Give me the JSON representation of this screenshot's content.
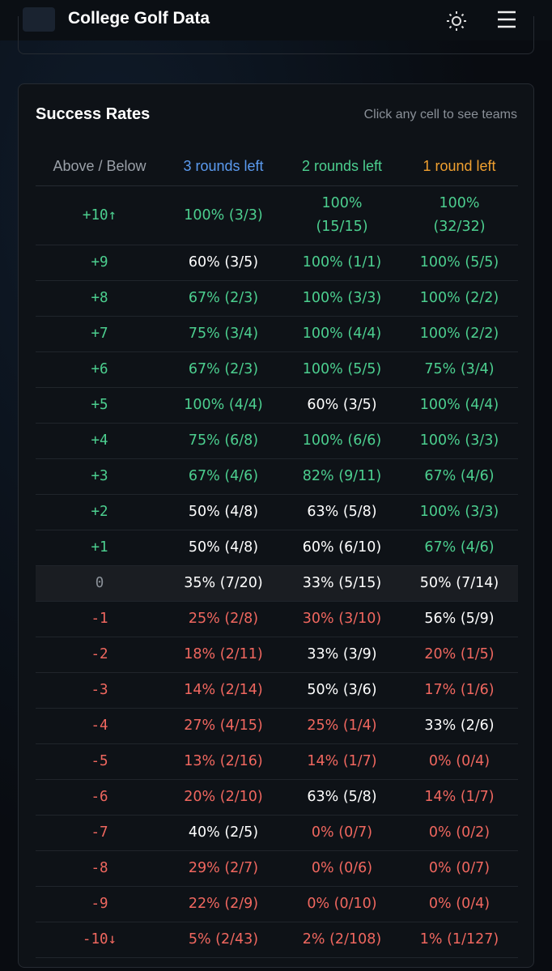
{
  "header": {
    "title": "College Golf Data"
  },
  "card": {
    "title": "Success Rates",
    "hint": "Click any cell to see teams"
  },
  "table": {
    "columns": [
      {
        "text": "Above / Below",
        "color": "#9aa0a8"
      },
      {
        "text": "3 rounds left",
        "color": "#5b9bf0"
      },
      {
        "text": "2 rounds left",
        "color": "#4ccf8f"
      },
      {
        "text": "1 round left",
        "color": "#f0a030"
      }
    ],
    "rows": [
      {
        "label": "+10↑",
        "label_color": "#4ccf8f",
        "cells": [
          {
            "text": "100% (3/3)",
            "color": "#4ccf8f"
          },
          {
            "text": "100% (15/15)",
            "color": "#4ccf8f"
          },
          {
            "text": "100% (32/32)",
            "color": "#4ccf8f"
          }
        ]
      },
      {
        "label": "+9",
        "label_color": "#4ccf8f",
        "cells": [
          {
            "text": "60% (3/5)",
            "color": "#ffffff"
          },
          {
            "text": "100% (1/1)",
            "color": "#4ccf8f"
          },
          {
            "text": "100% (5/5)",
            "color": "#4ccf8f"
          }
        ]
      },
      {
        "label": "+8",
        "label_color": "#4ccf8f",
        "cells": [
          {
            "text": "67% (2/3)",
            "color": "#4ccf8f"
          },
          {
            "text": "100% (3/3)",
            "color": "#4ccf8f"
          },
          {
            "text": "100% (2/2)",
            "color": "#4ccf8f"
          }
        ]
      },
      {
        "label": "+7",
        "label_color": "#4ccf8f",
        "cells": [
          {
            "text": "75% (3/4)",
            "color": "#4ccf8f"
          },
          {
            "text": "100% (4/4)",
            "color": "#4ccf8f"
          },
          {
            "text": "100% (2/2)",
            "color": "#4ccf8f"
          }
        ]
      },
      {
        "label": "+6",
        "label_color": "#4ccf8f",
        "cells": [
          {
            "text": "67% (2/3)",
            "color": "#4ccf8f"
          },
          {
            "text": "100% (5/5)",
            "color": "#4ccf8f"
          },
          {
            "text": "75% (3/4)",
            "color": "#4ccf8f"
          }
        ]
      },
      {
        "label": "+5",
        "label_color": "#4ccf8f",
        "cells": [
          {
            "text": "100% (4/4)",
            "color": "#4ccf8f"
          },
          {
            "text": "60% (3/5)",
            "color": "#ffffff"
          },
          {
            "text": "100% (4/4)",
            "color": "#4ccf8f"
          }
        ]
      },
      {
        "label": "+4",
        "label_color": "#4ccf8f",
        "cells": [
          {
            "text": "75% (6/8)",
            "color": "#4ccf8f"
          },
          {
            "text": "100% (6/6)",
            "color": "#4ccf8f"
          },
          {
            "text": "100% (3/3)",
            "color": "#4ccf8f"
          }
        ]
      },
      {
        "label": "+3",
        "label_color": "#4ccf8f",
        "cells": [
          {
            "text": "67% (4/6)",
            "color": "#4ccf8f"
          },
          {
            "text": "82% (9/11)",
            "color": "#4ccf8f"
          },
          {
            "text": "67% (4/6)",
            "color": "#4ccf8f"
          }
        ]
      },
      {
        "label": "+2",
        "label_color": "#4ccf8f",
        "cells": [
          {
            "text": "50% (4/8)",
            "color": "#ffffff"
          },
          {
            "text": "63% (5/8)",
            "color": "#ffffff"
          },
          {
            "text": "100% (3/3)",
            "color": "#4ccf8f"
          }
        ]
      },
      {
        "label": "+1",
        "label_color": "#4ccf8f",
        "cells": [
          {
            "text": "50% (4/8)",
            "color": "#ffffff"
          },
          {
            "text": "60% (6/10)",
            "color": "#ffffff"
          },
          {
            "text": "67% (4/6)",
            "color": "#4ccf8f"
          }
        ]
      },
      {
        "label": "0",
        "label_color": "#8a9098",
        "cells": [
          {
            "text": "35% (7/20)",
            "color": "#ffffff"
          },
          {
            "text": "33% (5/15)",
            "color": "#ffffff"
          },
          {
            "text": "50% (7/14)",
            "color": "#ffffff"
          }
        ]
      },
      {
        "label": "-1",
        "label_color": "#f0675f",
        "cells": [
          {
            "text": "25% (2/8)",
            "color": "#f0675f"
          },
          {
            "text": "30% (3/10)",
            "color": "#f0675f"
          },
          {
            "text": "56% (5/9)",
            "color": "#ffffff"
          }
        ]
      },
      {
        "label": "-2",
        "label_color": "#f0675f",
        "cells": [
          {
            "text": "18% (2/11)",
            "color": "#f0675f"
          },
          {
            "text": "33% (3/9)",
            "color": "#ffffff"
          },
          {
            "text": "20% (1/5)",
            "color": "#f0675f"
          }
        ]
      },
      {
        "label": "-3",
        "label_color": "#f0675f",
        "cells": [
          {
            "text": "14% (2/14)",
            "color": "#f0675f"
          },
          {
            "text": "50% (3/6)",
            "color": "#ffffff"
          },
          {
            "text": "17% (1/6)",
            "color": "#f0675f"
          }
        ]
      },
      {
        "label": "-4",
        "label_color": "#f0675f",
        "cells": [
          {
            "text": "27% (4/15)",
            "color": "#f0675f"
          },
          {
            "text": "25% (1/4)",
            "color": "#f0675f"
          },
          {
            "text": "33% (2/6)",
            "color": "#ffffff"
          }
        ]
      },
      {
        "label": "-5",
        "label_color": "#f0675f",
        "cells": [
          {
            "text": "13% (2/16)",
            "color": "#f0675f"
          },
          {
            "text": "14% (1/7)",
            "color": "#f0675f"
          },
          {
            "text": "0% (0/4)",
            "color": "#f0675f"
          }
        ]
      },
      {
        "label": "-6",
        "label_color": "#f0675f",
        "cells": [
          {
            "text": "20% (2/10)",
            "color": "#f0675f"
          },
          {
            "text": "63% (5/8)",
            "color": "#ffffff"
          },
          {
            "text": "14% (1/7)",
            "color": "#f0675f"
          }
        ]
      },
      {
        "label": "-7",
        "label_color": "#f0675f",
        "cells": [
          {
            "text": "40% (2/5)",
            "color": "#ffffff"
          },
          {
            "text": "0% (0/7)",
            "color": "#f0675f"
          },
          {
            "text": "0% (0/2)",
            "color": "#f0675f"
          }
        ]
      },
      {
        "label": "-8",
        "label_color": "#f0675f",
        "cells": [
          {
            "text": "29% (2/7)",
            "color": "#f0675f"
          },
          {
            "text": "0% (0/6)",
            "color": "#f0675f"
          },
          {
            "text": "0% (0/7)",
            "color": "#f0675f"
          }
        ]
      },
      {
        "label": "-9",
        "label_color": "#f0675f",
        "cells": [
          {
            "text": "22% (2/9)",
            "color": "#f0675f"
          },
          {
            "text": "0% (0/10)",
            "color": "#f0675f"
          },
          {
            "text": "0% (0/4)",
            "color": "#f0675f"
          }
        ]
      },
      {
        "label": "-10↓",
        "label_color": "#f0675f",
        "cells": [
          {
            "text": "5% (2/43)",
            "color": "#f0675f"
          },
          {
            "text": "2% (2/108)",
            "color": "#f0675f"
          },
          {
            "text": "1% (1/127)",
            "color": "#f0675f"
          }
        ]
      }
    ]
  }
}
